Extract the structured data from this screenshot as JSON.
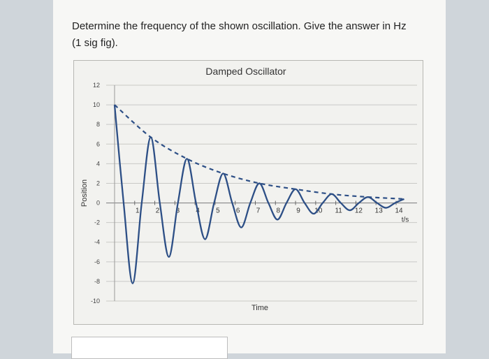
{
  "question": {
    "text_line1": "Determine the frequency of the shown oscillation. Give the answer in Hz",
    "text_line2": "(1 sig fig)."
  },
  "chart_data": {
    "type": "line",
    "title": "Damped Oscillator",
    "xlabel": "Time",
    "ylabel": "Position",
    "x_unit_label": "t/s",
    "xlim": [
      0,
      14.5
    ],
    "ylim": [
      -10,
      12
    ],
    "x_ticks": [
      1,
      2,
      3,
      4,
      5,
      6,
      7,
      8,
      9,
      10,
      11,
      12,
      13,
      14
    ],
    "y_ticks": [
      12,
      10,
      8,
      6,
      4,
      2,
      0,
      -2,
      -4,
      -6,
      -8,
      -10
    ],
    "grid": true,
    "series": [
      {
        "style": "solid",
        "color": "#2d4f86",
        "x": [
          0,
          0.45,
          0.9,
          1.35,
          1.8,
          2.25,
          2.7,
          3.15,
          3.6,
          4.05,
          4.5,
          4.95,
          5.4,
          5.85,
          6.3,
          6.75,
          7.2,
          7.65,
          8.1,
          8.55,
          9.0,
          9.45,
          9.9,
          10.35,
          10.8,
          11.25,
          11.7,
          12.15,
          12.6,
          13.05,
          13.5,
          13.95,
          14.4
        ],
        "y": [
          10,
          0,
          -8.2,
          0,
          6.7,
          0,
          -5.5,
          0,
          4.5,
          0,
          -3.7,
          0,
          3.0,
          0,
          -2.5,
          0,
          2.0,
          0,
          -1.7,
          0,
          1.4,
          0,
          -1.1,
          0,
          0.9,
          0,
          -0.75,
          0,
          0.6,
          0,
          -0.5,
          0,
          0.4
        ]
      },
      {
        "style": "dashed",
        "color": "#2d4f86",
        "x": [
          0,
          1.8,
          3.6,
          5.4,
          7.2,
          9.0,
          10.8,
          12.6,
          14.4
        ],
        "y": [
          10,
          6.7,
          4.5,
          3.0,
          2.0,
          1.4,
          0.9,
          0.6,
          0.4
        ]
      }
    ]
  }
}
